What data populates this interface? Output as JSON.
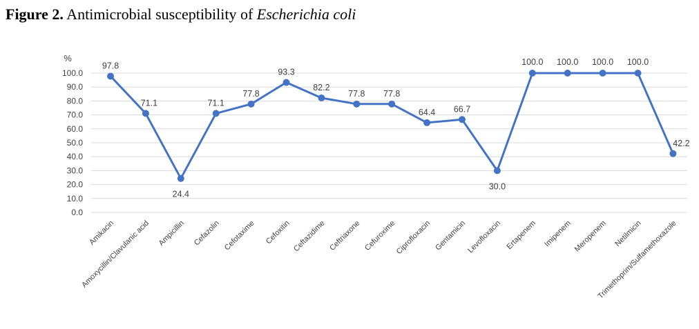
{
  "figure": {
    "label": "Figure 2.",
    "title_plain": " Antimicrobial susceptibility of ",
    "title_italic": "Escherichia coli"
  },
  "chart_data": {
    "type": "line",
    "ylabel": "%",
    "ylim": [
      0,
      100
    ],
    "yticks": [
      "0.0",
      "10.0",
      "20.0",
      "30.0",
      "40.0",
      "50.0",
      "60.0",
      "70.0",
      "80.0",
      "90.0",
      "100.0"
    ],
    "grid": true,
    "categories": [
      "Amikacin",
      "Amoxycillin/Clavulanic acid",
      "Ampicillin",
      "Cefazolin",
      "Cefotaxime",
      "Cefoxitin",
      "Ceftazidime",
      "Ceftriaxone",
      "Cefuroxime",
      "Ciprofloxacin",
      "Gentamicin",
      "Levofloxacin",
      "Ertapenem",
      "Imipenem",
      "Meropenem",
      "Netilmicin",
      "Trimethoprim/Sulfamethoxazole"
    ],
    "values": [
      97.8,
      71.1,
      24.4,
      71.1,
      77.8,
      93.3,
      82.2,
      77.8,
      77.8,
      64.4,
      66.7,
      30.0,
      100.0,
      100.0,
      100.0,
      100.0,
      42.2
    ],
    "data_labels": [
      "97.8",
      "71.1",
      "24.4",
      "71.1",
      "77.8",
      "93.3",
      "82.2",
      "77.8",
      "77.8",
      "64.4",
      "66.7",
      "30.0",
      "100.0",
      "100.0",
      "100.0",
      "100.0",
      "42.2"
    ],
    "line_color": "#4472c4"
  }
}
